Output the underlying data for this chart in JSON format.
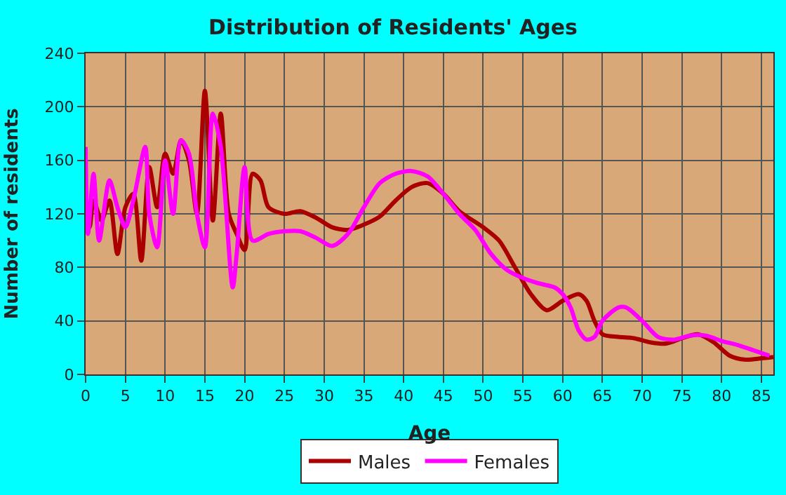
{
  "chart_data": {
    "type": "line",
    "title": "Distribution of Residents' Ages",
    "xlabel": "Age",
    "ylabel": "Number of residents",
    "xlim": [
      0,
      86.5
    ],
    "xticks": [
      0,
      5,
      10,
      15,
      20,
      25,
      30,
      35,
      40,
      45,
      50,
      55,
      60,
      65,
      70,
      75,
      80,
      85
    ],
    "ylim": [
      0,
      240
    ],
    "yticks": [
      0,
      40,
      80,
      120,
      160,
      200,
      240
    ],
    "grid": true,
    "legend": "bottom",
    "series": [
      {
        "name": "Males",
        "color": "#aa0000",
        "x": [
          0,
          0.5,
          1,
          2,
          3,
          4,
          5,
          6,
          7,
          8,
          9,
          10,
          11,
          12,
          13,
          14,
          15,
          16,
          17,
          18,
          19,
          20,
          21,
          22,
          23,
          25,
          27,
          29,
          31,
          33,
          35,
          37,
          39,
          41,
          43,
          45,
          47,
          50,
          52,
          54,
          56,
          58,
          60,
          62,
          63,
          64,
          65,
          67,
          69,
          71,
          73,
          75,
          77,
          79,
          81,
          83,
          85,
          86.5
        ],
        "values": [
          120,
          110,
          130,
          115,
          130,
          90,
          125,
          135,
          85,
          155,
          125,
          165,
          150,
          175,
          160,
          120,
          212,
          115,
          195,
          120,
          105,
          93,
          150,
          145,
          125,
          120,
          122,
          117,
          110,
          108,
          112,
          118,
          130,
          140,
          143,
          135,
          122,
          110,
          100,
          80,
          60,
          48,
          55,
          60,
          55,
          40,
          30,
          28,
          27,
          24,
          23,
          27,
          30,
          24,
          14,
          11,
          12,
          13
        ]
      },
      {
        "name": "Females",
        "color": "#ff00ff",
        "x": [
          0,
          0.3,
          1,
          1.7,
          3,
          4,
          5,
          6,
          7.5,
          8,
          9,
          10,
          11,
          12,
          13,
          14,
          15,
          16,
          17,
          18.5,
          19,
          20,
          21,
          23,
          25,
          27,
          29,
          31,
          33,
          35,
          37,
          39,
          41,
          43,
          45,
          47,
          49,
          51,
          53,
          55,
          57,
          59,
          60,
          61,
          62,
          63,
          64,
          65,
          67,
          68,
          70,
          72,
          74,
          76,
          78,
          80,
          82,
          84,
          86
        ],
        "values": [
          170,
          105,
          150,
          100,
          145,
          125,
          110,
          130,
          170,
          120,
          95,
          160,
          120,
          175,
          165,
          120,
          95,
          195,
          170,
          65,
          90,
          155,
          100,
          105,
          107,
          107,
          102,
          96,
          105,
          125,
          143,
          150,
          152,
          148,
          135,
          120,
          108,
          90,
          78,
          72,
          68,
          65,
          60,
          50,
          33,
          26,
          28,
          40,
          50,
          50,
          40,
          28,
          26,
          29,
          29,
          25,
          22,
          18,
          14
        ]
      }
    ]
  }
}
